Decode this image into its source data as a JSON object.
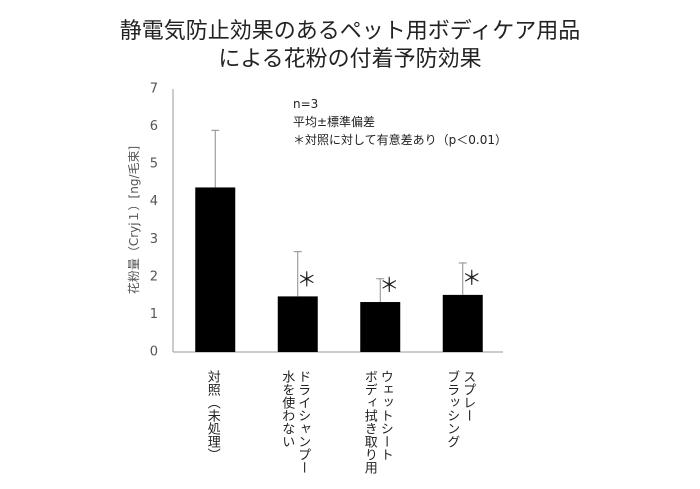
{
  "chart_data": {
    "type": "bar",
    "title": [
      "静電気防止効果のあるペット用ボディケア用品",
      "による花粉の付着予防効果"
    ],
    "y_label": "花粉量（Cryj１）[ng/毛束]",
    "annotations": [
      "n=3",
      "平均±標準偏差",
      "＊対照に対して有意差あり（p＜0.01）"
    ],
    "categories": [
      [
        "対照（未処理）"
      ],
      [
        "ドライシャンプー",
        "水を使わない"
      ],
      [
        "ウェットシート",
        "ボディ拭き取り用"
      ],
      [
        "スプレー",
        "ブラッシング"
      ]
    ],
    "values": [
      4.38,
      1.48,
      1.33,
      1.52
    ],
    "errors": [
      1.52,
      1.19,
      0.62,
      0.85
    ],
    "significance": [
      null,
      "＊",
      "＊",
      "＊"
    ],
    "color": "#000000",
    "error_color": "#8c8c8c",
    "ylim": [
      0,
      7
    ],
    "yticks": [
      0,
      1,
      2,
      3,
      4,
      5,
      6,
      7
    ],
    "grid": false
  }
}
